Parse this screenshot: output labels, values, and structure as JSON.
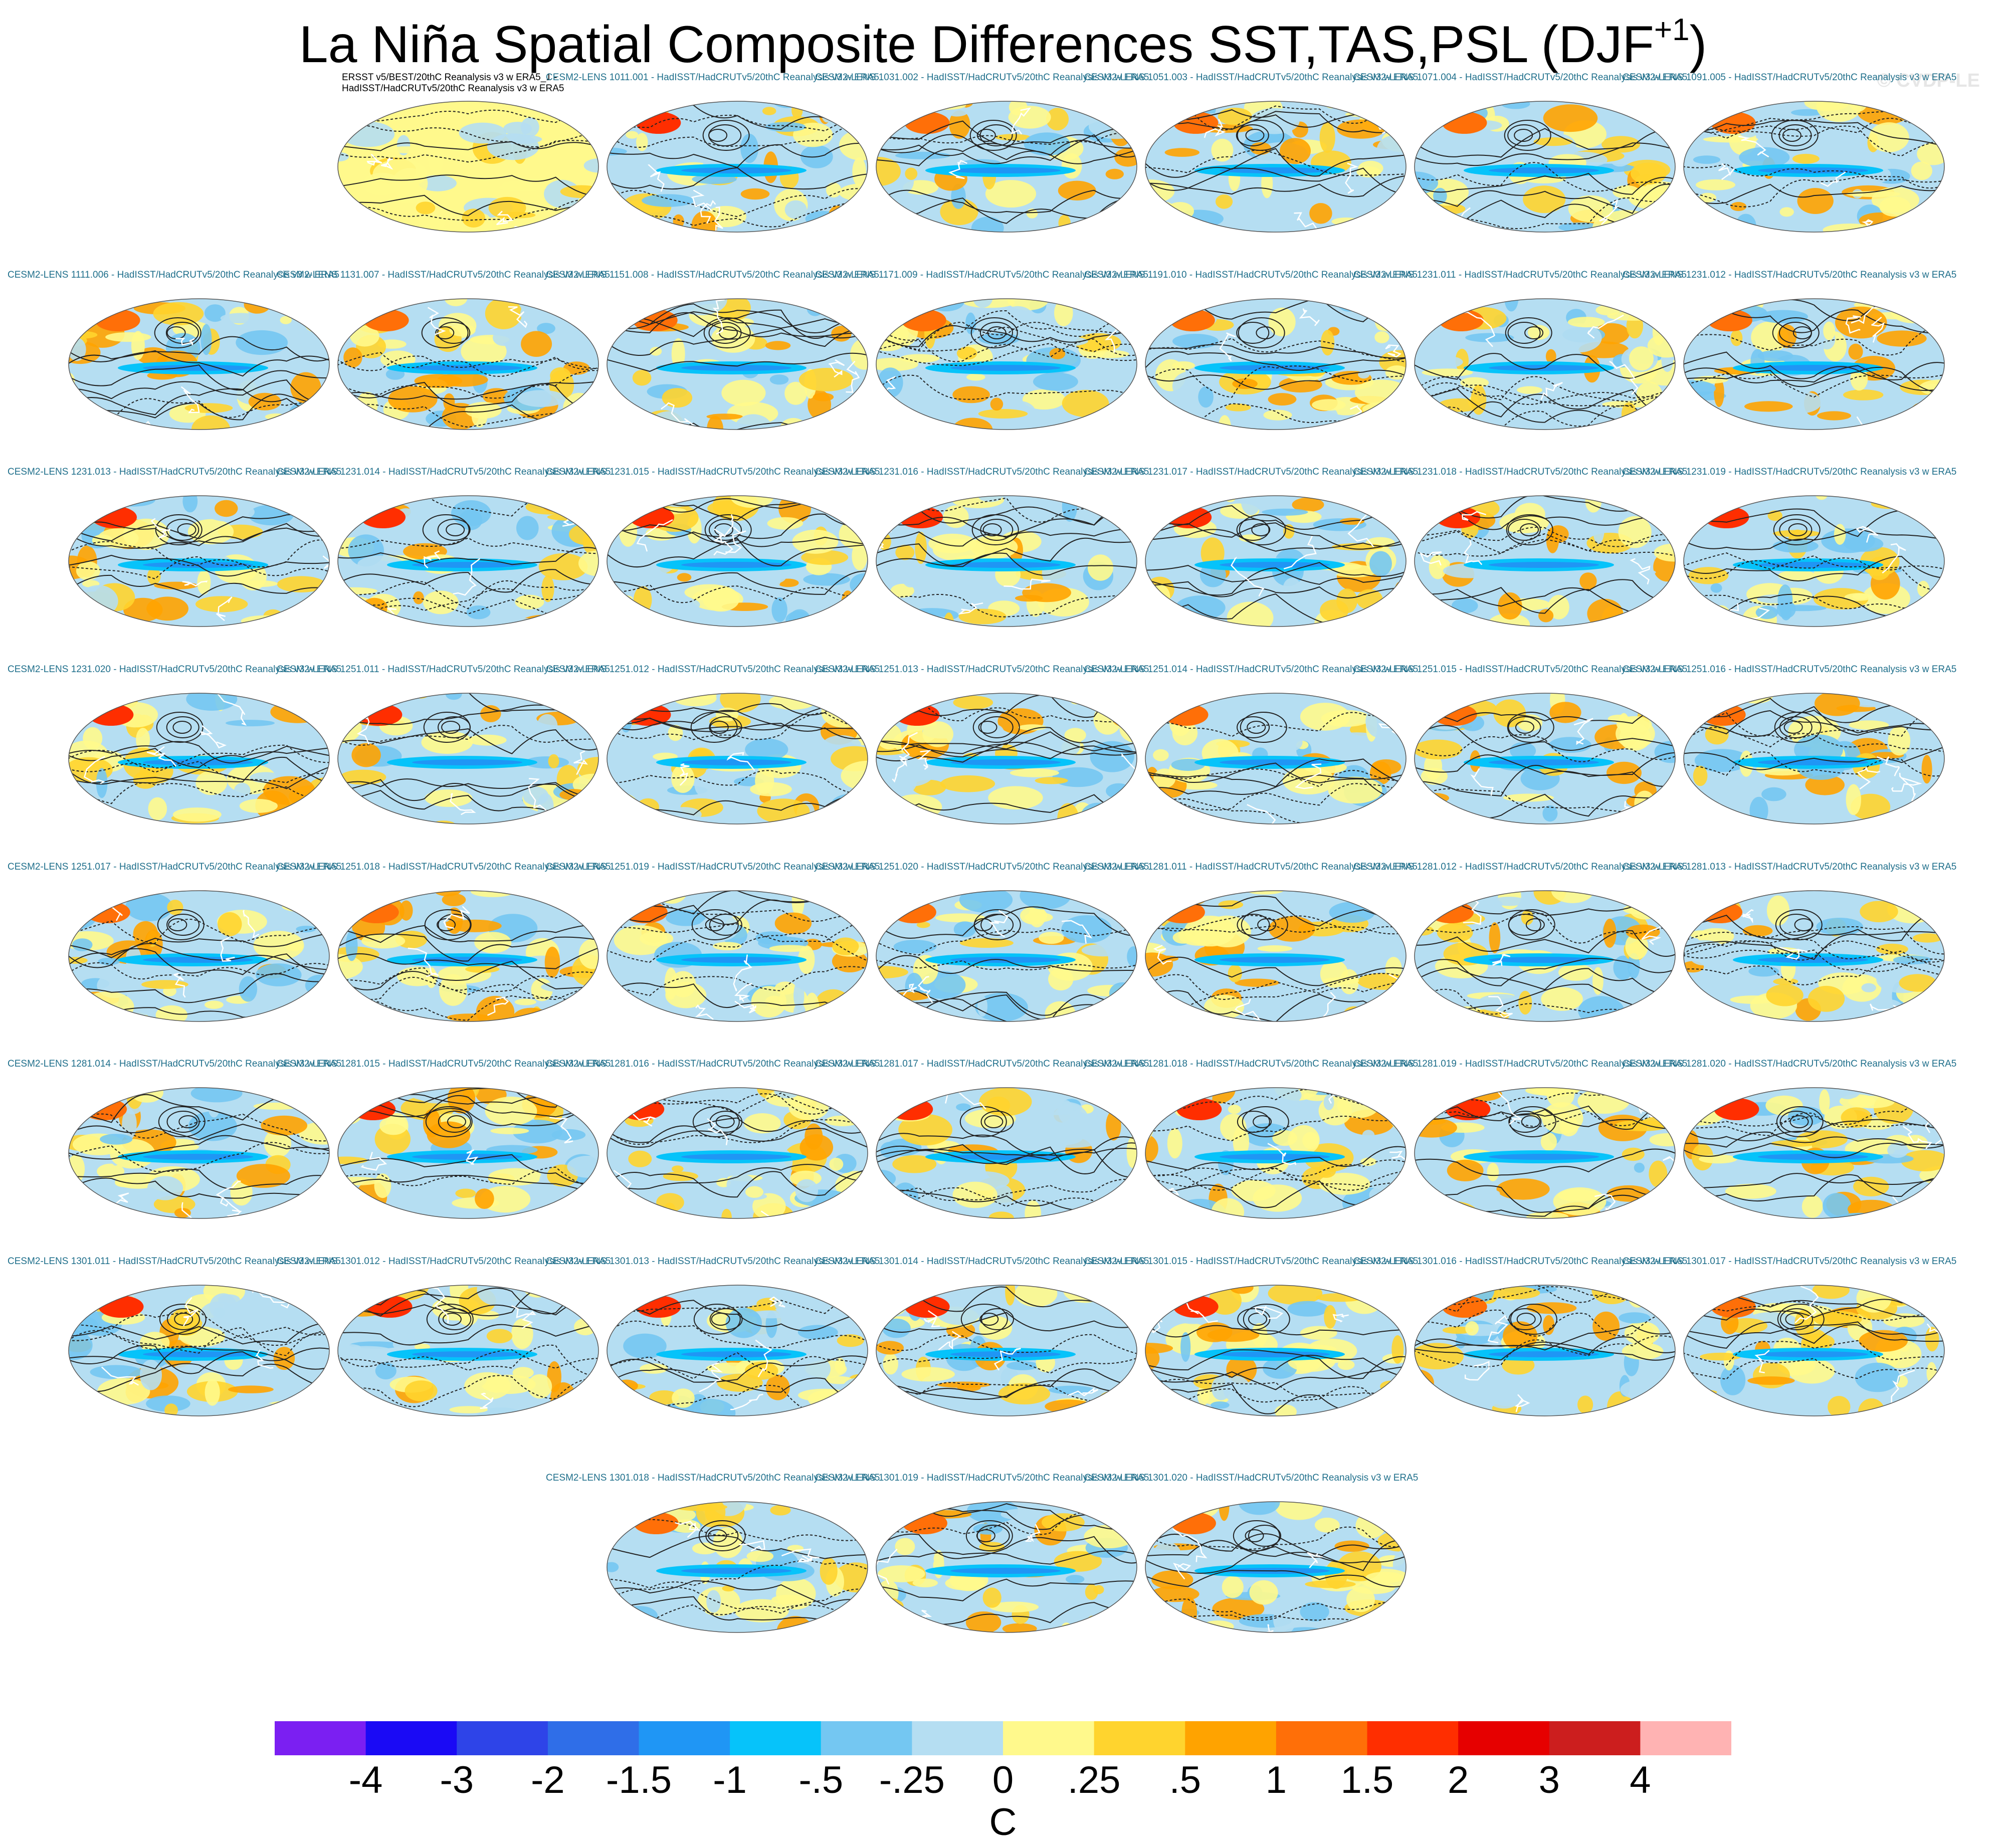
{
  "title_main": "La Niña Spatial Composite Differences SST,TAS,PSL (DJF",
  "title_sup": "+1",
  "title_close": ")",
  "copyright": "© CVDP-LE",
  "colors": {
    "label_model": "#1f6f8b",
    "label_obs": "#000000",
    "coast": "#ffffff",
    "contour": "#222222"
  },
  "chart_data": {
    "type": "heatmap",
    "description_variable": "SST/TAS shading with PSL contours",
    "colorbar": {
      "units": "C",
      "tick_labels": [
        "-4",
        "-3",
        "-2",
        "-1.5",
        "-1",
        "-.5",
        "-.25",
        "0",
        ".25",
        ".5",
        "1",
        "1.5",
        "2",
        "3",
        "4"
      ],
      "colors": [
        "#7b1ff2",
        "#1a0af5",
        "#2e44e8",
        "#2f6ee8",
        "#1f96f5",
        "#06c3fa",
        "#74c7f2",
        "#b5def2",
        "#fff98c",
        "#ffd42e",
        "#ffa300",
        "#ff6f08",
        "#ff2e00",
        "#e60000",
        "#cc1e1e",
        "#ffb3b3"
      ]
    },
    "panels": [
      {
        "label1": "ERSST v5/BEST/20thC Reanalysis v3 w ERA5_1 -",
        "label2": "HadISST/HadCRUTv5/20thC Reanalysis v3 w ERA5",
        "obs": true,
        "seed": 1
      },
      {
        "label1": "CESM2-LENS 1011.001 - HadISST/HadCRUTv5/20thC Reanalysis v3 w ERA5",
        "seed": 2
      },
      {
        "label1": "CESM2-LENS 1031.002 - HadISST/HadCRUTv5/20thC Reanalysis v3 w ERA5",
        "seed": 3
      },
      {
        "label1": "CESM2-LENS 1051.003 - HadISST/HadCRUTv5/20thC Reanalysis v3 w ERA5",
        "seed": 4
      },
      {
        "label1": "CESM2-LENS 1071.004 - HadISST/HadCRUTv5/20thC Reanalysis v3 w ERA5",
        "seed": 5
      },
      {
        "label1": "CESM2-LENS 1091.005 - HadISST/HadCRUTv5/20thC Reanalysis v3 w ERA5",
        "seed": 6
      },
      {
        "label1": "CESM2-LENS 1111.006 - HadISST/HadCRUTv5/20thC Reanalysis v3 w ERA5",
        "seed": 7
      },
      {
        "label1": "CESM2-LENS 1131.007 - HadISST/HadCRUTv5/20thC Reanalysis v3 w ERA5",
        "seed": 8
      },
      {
        "label1": "CESM2-LENS 1151.008 - HadISST/HadCRUTv5/20thC Reanalysis v3 w ERA5",
        "seed": 9
      },
      {
        "label1": "CESM2-LENS 1171.009 - HadISST/HadCRUTv5/20thC Reanalysis v3 w ERA5",
        "seed": 10
      },
      {
        "label1": "CESM2-LENS 1191.010 - HadISST/HadCRUTv5/20thC Reanalysis v3 w ERA5",
        "seed": 11
      },
      {
        "label1": "CESM2-LENS 1231.011 - HadISST/HadCRUTv5/20thC Reanalysis v3 w ERA5",
        "seed": 12
      },
      {
        "label1": "CESM2-LENS 1231.012 - HadISST/HadCRUTv5/20thC Reanalysis v3 w ERA5",
        "seed": 13
      },
      {
        "label1": "CESM2-LENS 1231.013 - HadISST/HadCRUTv5/20thC Reanalysis v3 w ERA5",
        "seed": 14
      },
      {
        "label1": "CESM2-LENS 1231.014 - HadISST/HadCRUTv5/20thC Reanalysis v3 w ERA5",
        "seed": 15
      },
      {
        "label1": "CESM2-LENS 1231.015 - HadISST/HadCRUTv5/20thC Reanalysis v3 w ERA5",
        "seed": 16
      },
      {
        "label1": "CESM2-LENS 1231.016 - HadISST/HadCRUTv5/20thC Reanalysis v3 w ERA5",
        "seed": 17
      },
      {
        "label1": "CESM2-LENS 1231.017 - HadISST/HadCRUTv5/20thC Reanalysis v3 w ERA5",
        "seed": 18
      },
      {
        "label1": "CESM2-LENS 1231.018 - HadISST/HadCRUTv5/20thC Reanalysis v3 w ERA5",
        "seed": 19
      },
      {
        "label1": "CESM2-LENS 1231.019 - HadISST/HadCRUTv5/20thC Reanalysis v3 w ERA5",
        "seed": 20
      },
      {
        "label1": "CESM2-LENS 1231.020 - HadISST/HadCRUTv5/20thC Reanalysis v3 w ERA5",
        "seed": 21
      },
      {
        "label1": "CESM2-LENS 1251.011 - HadISST/HadCRUTv5/20thC Reanalysis v3 w ERA5",
        "seed": 22
      },
      {
        "label1": "CESM2-LENS 1251.012 - HadISST/HadCRUTv5/20thC Reanalysis v3 w ERA5",
        "seed": 23
      },
      {
        "label1": "CESM2-LENS 1251.013 - HadISST/HadCRUTv5/20thC Reanalysis v3 w ERA5",
        "seed": 24
      },
      {
        "label1": "CESM2-LENS 1251.014 - HadISST/HadCRUTv5/20thC Reanalysis v3 w ERA5",
        "seed": 25
      },
      {
        "label1": "CESM2-LENS 1251.015 - HadISST/HadCRUTv5/20thC Reanalysis v3 w ERA5",
        "seed": 26
      },
      {
        "label1": "CESM2-LENS 1251.016 - HadISST/HadCRUTv5/20thC Reanalysis v3 w ERA5",
        "seed": 27
      },
      {
        "label1": "CESM2-LENS 1251.017 - HadISST/HadCRUTv5/20thC Reanalysis v3 w ERA5",
        "seed": 28
      },
      {
        "label1": "CESM2-LENS 1251.018 - HadISST/HadCRUTv5/20thC Reanalysis v3 w ERA5",
        "seed": 29
      },
      {
        "label1": "CESM2-LENS 1251.019 - HadISST/HadCRUTv5/20thC Reanalysis v3 w ERA5",
        "seed": 30
      },
      {
        "label1": "CESM2-LENS 1251.020 - HadISST/HadCRUTv5/20thC Reanalysis v3 w ERA5",
        "seed": 31
      },
      {
        "label1": "CESM2-LENS 1281.011 - HadISST/HadCRUTv5/20thC Reanalysis v3 w ERA5",
        "seed": 32
      },
      {
        "label1": "CESM2-LENS 1281.012 - HadISST/HadCRUTv5/20thC Reanalysis v3 w ERA5",
        "seed": 33
      },
      {
        "label1": "CESM2-LENS 1281.013 - HadISST/HadCRUTv5/20thC Reanalysis v3 w ERA5",
        "seed": 34
      },
      {
        "label1": "CESM2-LENS 1281.014 - HadISST/HadCRUTv5/20thC Reanalysis v3 w ERA5",
        "seed": 35
      },
      {
        "label1": "CESM2-LENS 1281.015 - HadISST/HadCRUTv5/20thC Reanalysis v3 w ERA5",
        "seed": 36
      },
      {
        "label1": "CESM2-LENS 1281.016 - HadISST/HadCRUTv5/20thC Reanalysis v3 w ERA5",
        "seed": 37
      },
      {
        "label1": "CESM2-LENS 1281.017 - HadISST/HadCRUTv5/20thC Reanalysis v3 w ERA5",
        "seed": 38
      },
      {
        "label1": "CESM2-LENS 1281.018 - HadISST/HadCRUTv5/20thC Reanalysis v3 w ERA5",
        "seed": 39
      },
      {
        "label1": "CESM2-LENS 1281.019 - HadISST/HadCRUTv5/20thC Reanalysis v3 w ERA5",
        "seed": 40
      },
      {
        "label1": "CESM2-LENS 1281.020 - HadISST/HadCRUTv5/20thC Reanalysis v3 w ERA5",
        "seed": 41
      },
      {
        "label1": "CESM2-LENS 1301.011 - HadISST/HadCRUTv5/20thC Reanalysis v3 w ERA5",
        "seed": 42
      },
      {
        "label1": "CESM2-LENS 1301.012 - HadISST/HadCRUTv5/20thC Reanalysis v3 w ERA5",
        "seed": 43
      },
      {
        "label1": "CESM2-LENS 1301.013 - HadISST/HadCRUTv5/20thC Reanalysis v3 w ERA5",
        "seed": 44
      },
      {
        "label1": "CESM2-LENS 1301.014 - HadISST/HadCRUTv5/20thC Reanalysis v3 w ERA5",
        "seed": 45
      },
      {
        "label1": "CESM2-LENS 1301.015 - HadISST/HadCRUTv5/20thC Reanalysis v3 w ERA5",
        "seed": 46
      },
      {
        "label1": "CESM2-LENS 1301.016 - HadISST/HadCRUTv5/20thC Reanalysis v3 w ERA5",
        "seed": 47
      },
      {
        "label1": "CESM2-LENS 1301.017 - HadISST/HadCRUTv5/20thC Reanalysis v3 w ERA5",
        "seed": 48
      },
      {
        "label1": "CESM2-LENS 1301.018 - HadISST/HadCRUTv5/20thC Reanalysis v3 w ERA5",
        "seed": 49
      },
      {
        "label1": "CESM2-LENS 1301.019 - HadISST/HadCRUTv5/20thC Reanalysis v3 w ERA5",
        "seed": 50
      },
      {
        "label1": "CESM2-LENS 1301.020 - HadISST/HadCRUTv5/20thC Reanalysis v3 w ERA5",
        "seed": 51
      }
    ]
  }
}
